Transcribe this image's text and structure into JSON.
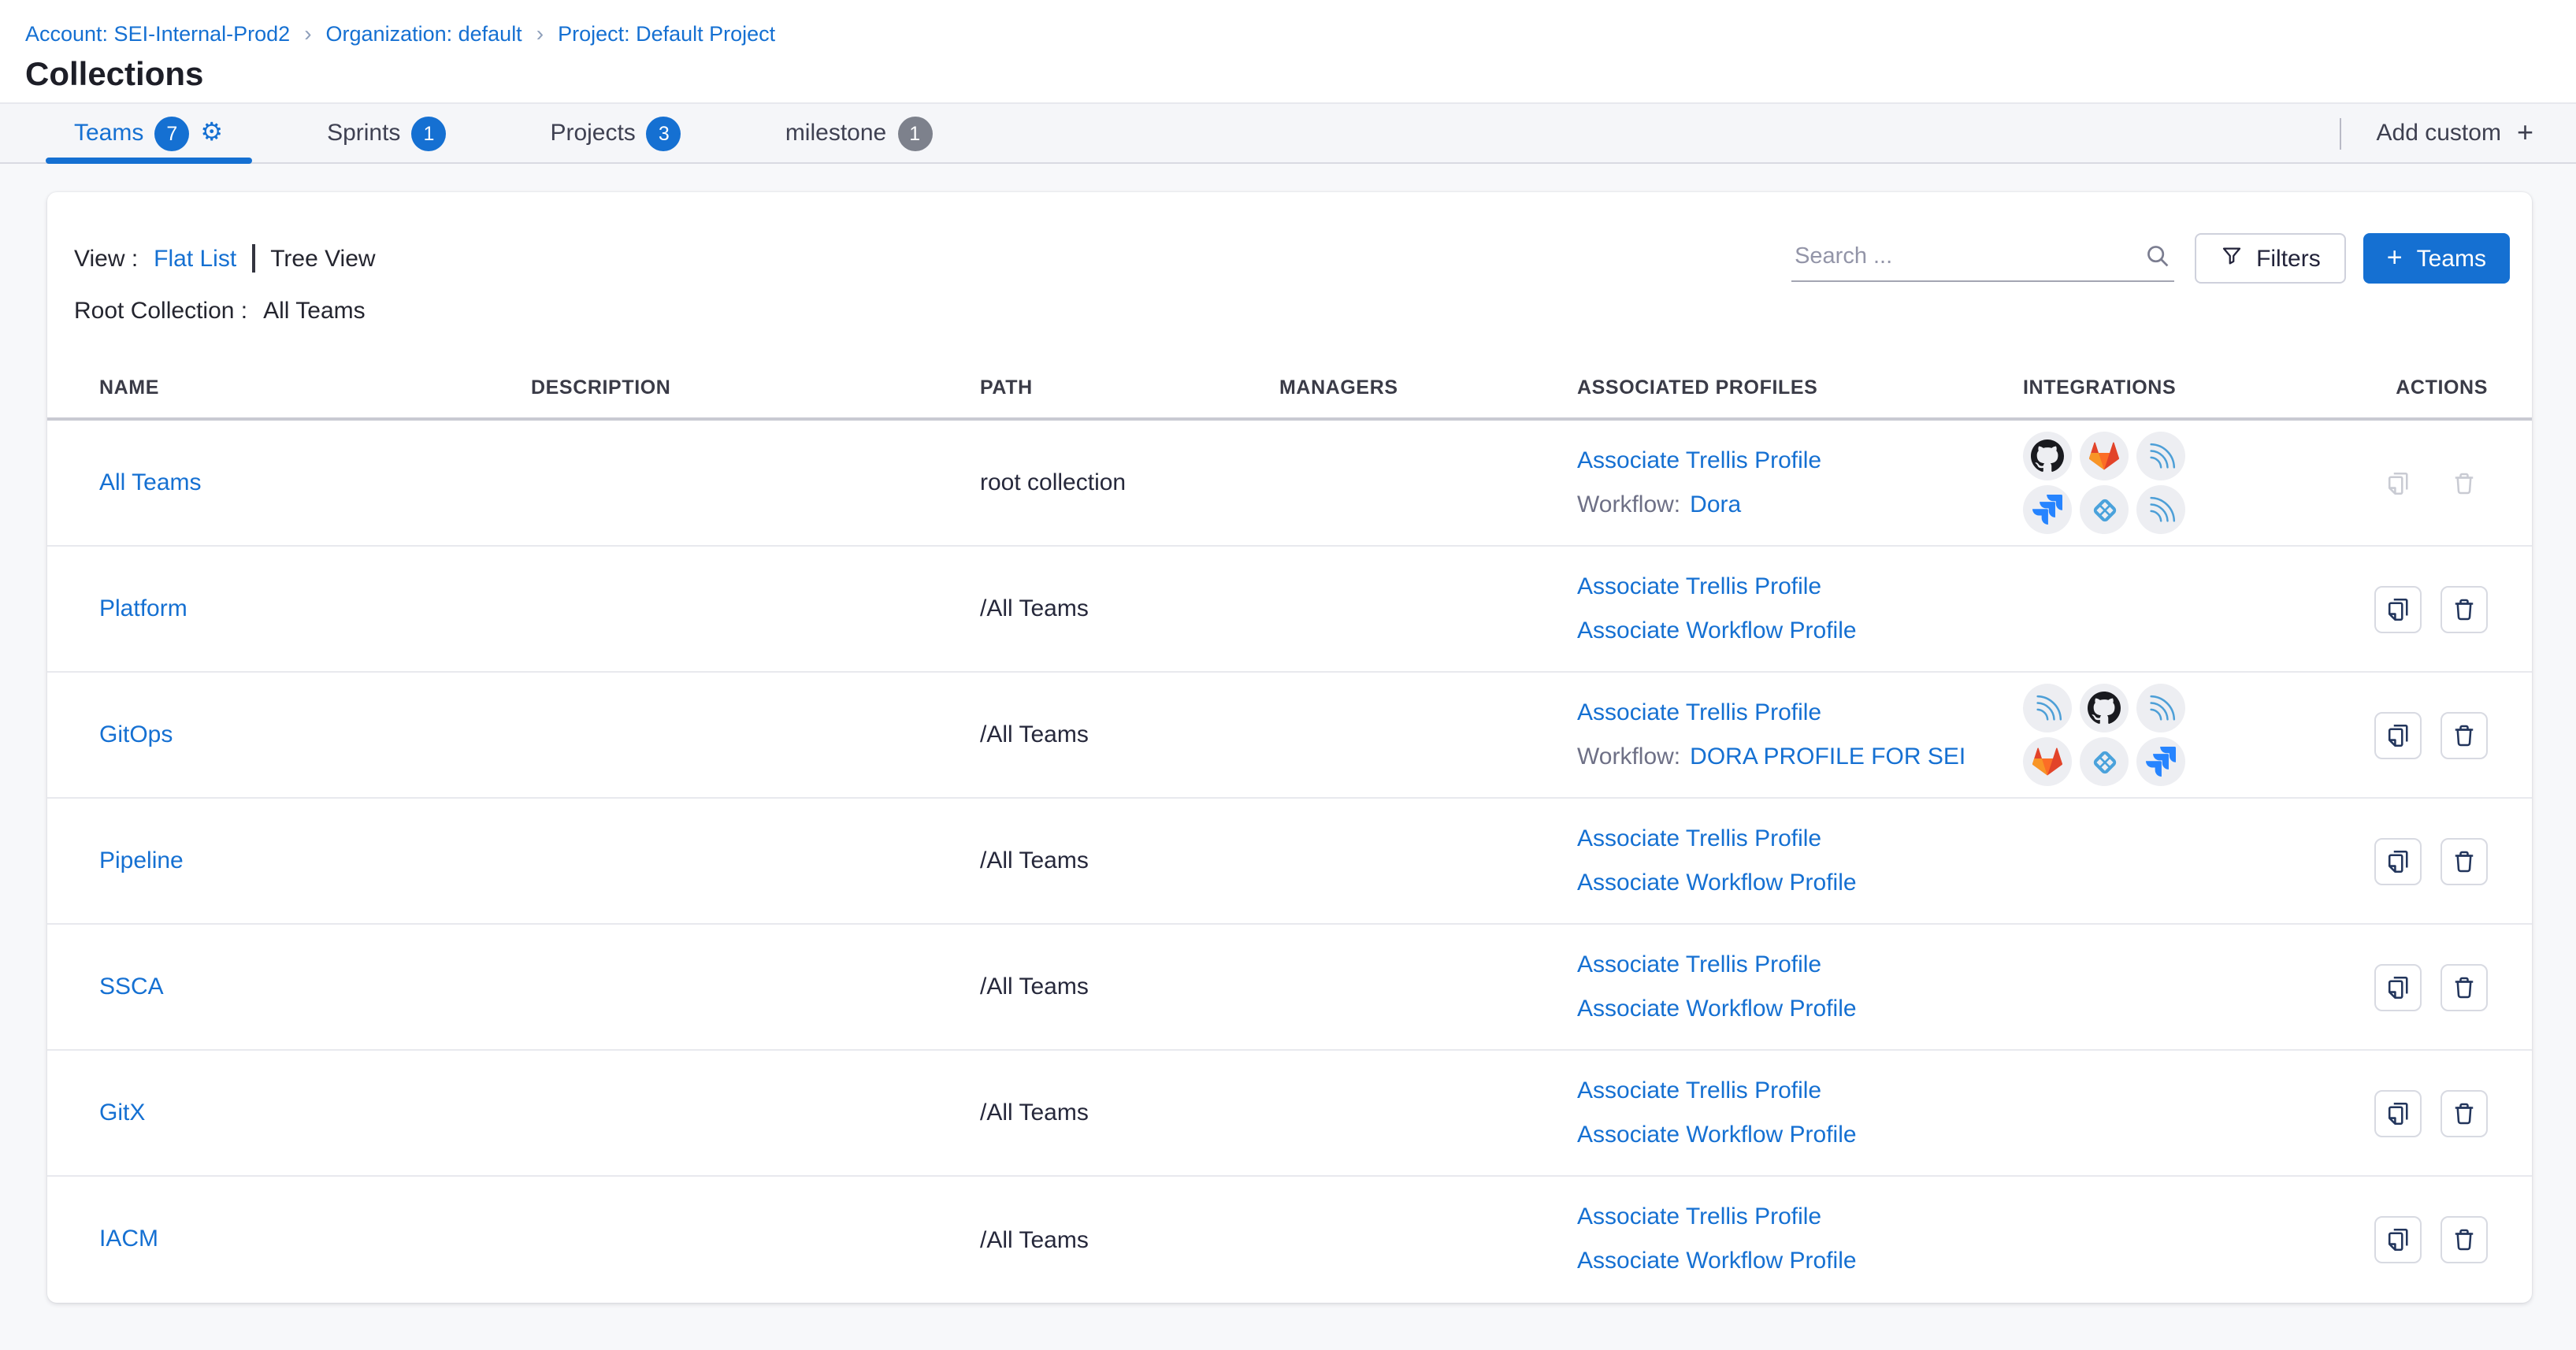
{
  "breadcrumb": {
    "separator": "›",
    "items": [
      "Account: SEI-Internal-Prod2",
      "Organization: default",
      "Project: Default Project"
    ]
  },
  "page": {
    "title": "Collections"
  },
  "tab_bar": {
    "tabs": [
      {
        "label": "Teams",
        "count": "7"
      },
      {
        "label": "Sprints",
        "count": "1"
      },
      {
        "label": "Projects",
        "count": "3"
      },
      {
        "label": "milestone",
        "count": "1"
      }
    ],
    "add_custom_label": "Add custom",
    "add_custom_plus": "+"
  },
  "controls": {
    "view_label": "View :",
    "flat_list_label": "Flat List",
    "tree_view_label": "Tree View",
    "root_collection_label": "Root Collection :",
    "root_collection_value": "All Teams",
    "search_placeholder": "Search ...",
    "filters_label": "Filters",
    "teams_button_label": "Teams",
    "teams_button_plus": "+"
  },
  "table": {
    "headers": {
      "name": "NAME",
      "description": "DESCRIPTION",
      "path": "PATH",
      "managers": "MANAGERS",
      "profiles": "ASSOCIATED PROFILES",
      "integrations": "INTEGRATIONS",
      "actions": "ACTIONS"
    },
    "rows": [
      {
        "name": "All Teams",
        "description": "",
        "path": "root collection",
        "managers": "",
        "trellis_link": "Associate Trellis Profile",
        "workflow_label": "Workflow:",
        "workflow_link": "Dora",
        "integrations": [
          "github",
          "gitlab",
          "arcs",
          "jira",
          "diamond-grid",
          "arcs"
        ]
      },
      {
        "name": "Platform",
        "description": "",
        "path": "/All Teams",
        "managers": "",
        "trellis_link": "Associate Trellis Profile",
        "workflow_profile_link": "Associate Workflow Profile",
        "integrations": []
      },
      {
        "name": "GitOps",
        "description": "",
        "path": "/All Teams",
        "managers": "",
        "trellis_link": "Associate Trellis Profile",
        "workflow_label": "Workflow:",
        "workflow_link": "DORA PROFILE FOR SEI",
        "integrations": [
          "arcs",
          "github",
          "arcs",
          "gitlab",
          "diamond-grid",
          "jira"
        ]
      },
      {
        "name": "Pipeline",
        "description": "",
        "path": "/All Teams",
        "managers": "",
        "trellis_link": "Associate Trellis Profile",
        "workflow_profile_link": "Associate Workflow Profile",
        "integrations": []
      },
      {
        "name": "SSCA",
        "description": "",
        "path": "/All Teams",
        "managers": "",
        "trellis_link": "Associate Trellis Profile",
        "workflow_profile_link": "Associate Workflow Profile",
        "integrations": []
      },
      {
        "name": "GitX",
        "description": "",
        "path": "/All Teams",
        "managers": "",
        "trellis_link": "Associate Trellis Profile",
        "workflow_profile_link": "Associate Workflow Profile",
        "integrations": []
      },
      {
        "name": "IACM",
        "description": "",
        "path": "/All Teams",
        "managers": "",
        "trellis_link": "Associate Trellis Profile",
        "workflow_profile_link": "Associate Workflow Profile",
        "integrations": []
      }
    ]
  },
  "colors": {
    "accent_blue": "#1570d2",
    "badge_gray": "#7d818c",
    "jira_blue": "#2684ff",
    "gitlab_orange": "#e24329",
    "arcs_blue": "#4d9fd7",
    "diamond_blue": "#4aa2db"
  }
}
